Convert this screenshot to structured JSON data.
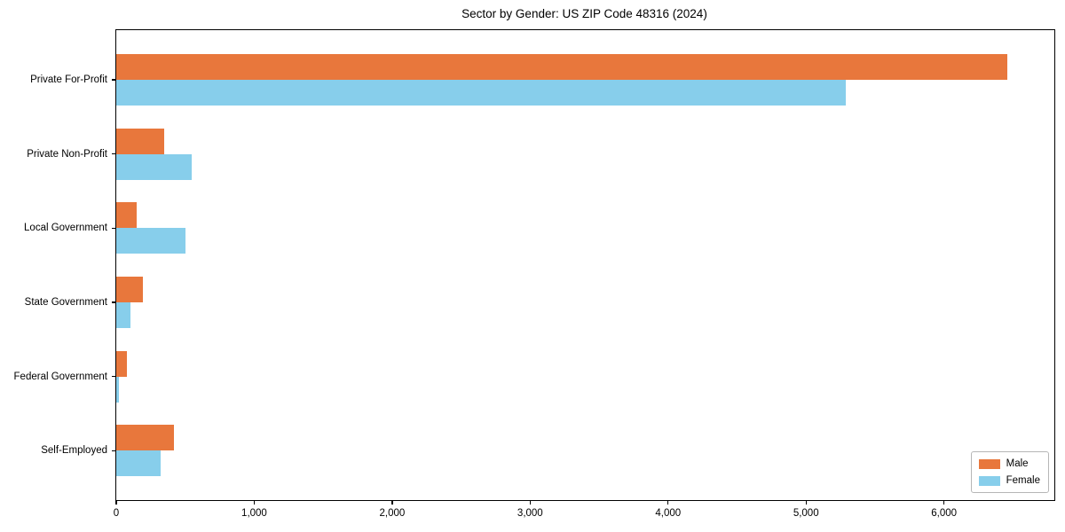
{
  "chart_data": {
    "type": "bar",
    "orientation": "horizontal",
    "title": "Sector by Gender: US ZIP Code 48316 (2024)",
    "categories": [
      "Private For-Profit",
      "Private Non-Profit",
      "Local Government",
      "State Government",
      "Federal Government",
      "Self-Employed"
    ],
    "series": [
      {
        "name": "Male",
        "color": "#e8773c",
        "values": [
          6460,
          350,
          150,
          190,
          80,
          420
        ]
      },
      {
        "name": "Female",
        "color": "#87ceeb",
        "values": [
          5290,
          550,
          500,
          100,
          20,
          320
        ]
      }
    ],
    "xlabel": "",
    "ylabel": "",
    "xlim": [
      0,
      6800
    ],
    "x_ticks": [
      0,
      1000,
      2000,
      3000,
      4000,
      5000,
      6000
    ],
    "x_tick_labels": [
      "0",
      "1,000",
      "2,000",
      "3,000",
      "4,000",
      "5,000",
      "6,000"
    ],
    "grid": false,
    "legend": {
      "position": "lower right"
    },
    "colors": {
      "axis": "#000000",
      "background": "#ffffff"
    }
  }
}
